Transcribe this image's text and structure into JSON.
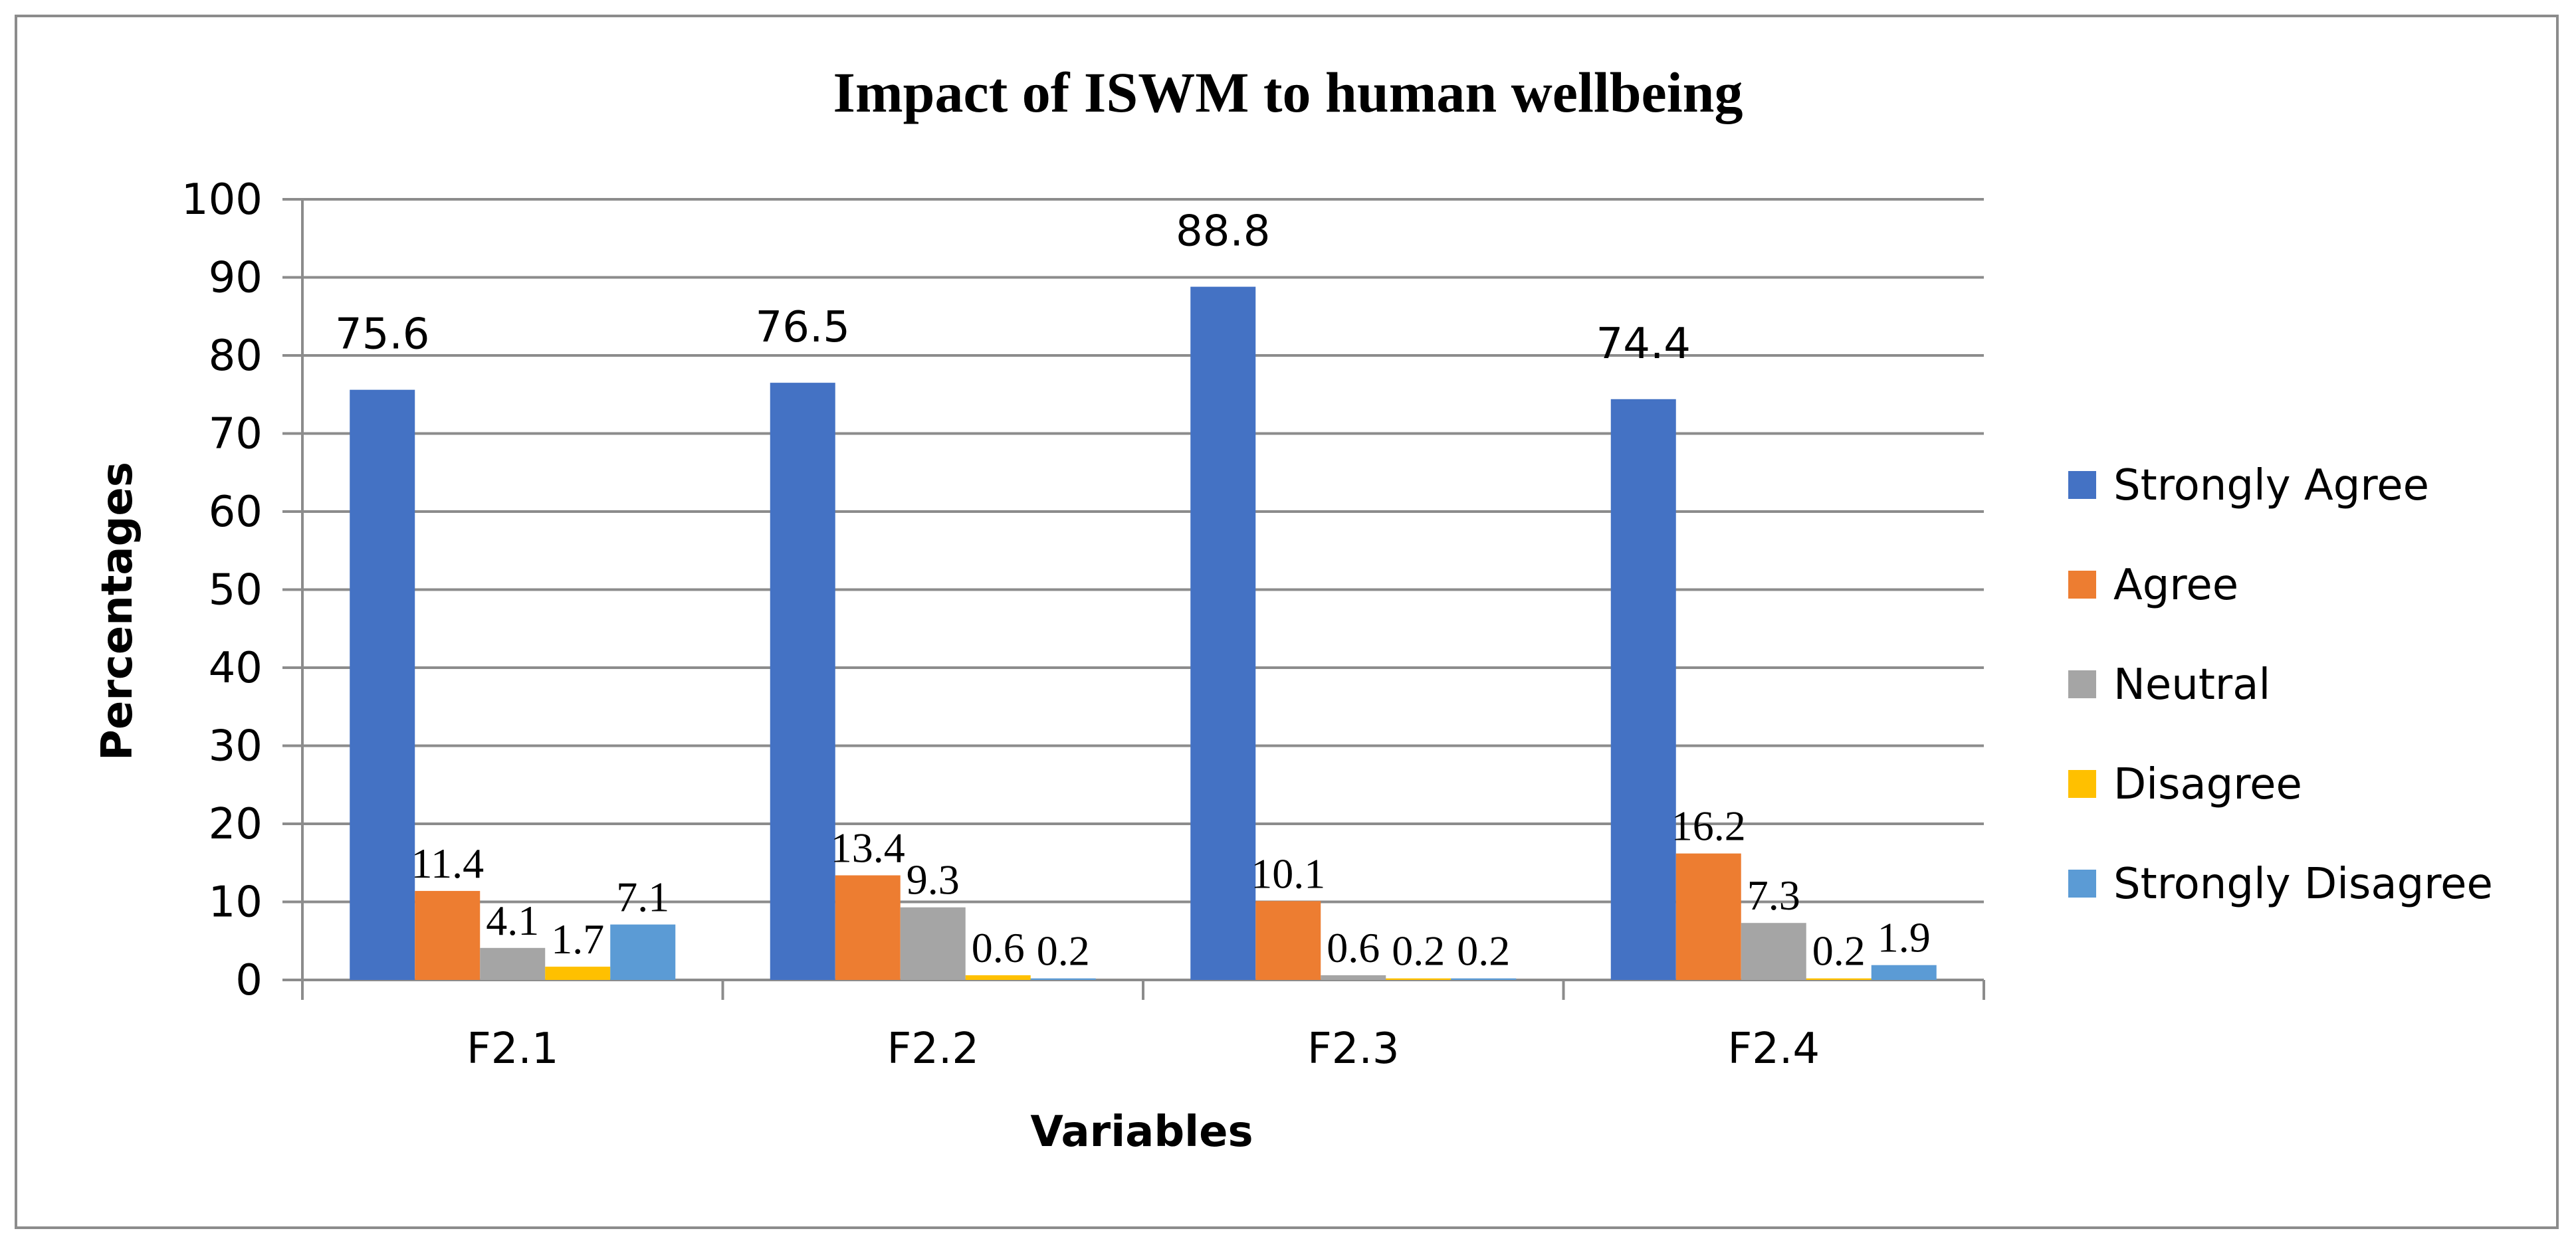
{
  "chart_data": {
    "type": "bar",
    "title": "Impact of ISWM to human  wellbeing",
    "xlabel": "Variables",
    "ylabel": "Percentages",
    "categories": [
      "F2.1",
      "F2.2",
      "F2.3",
      "F2.4"
    ],
    "ylim": [
      0,
      100
    ],
    "yticks": [
      0,
      10,
      20,
      30,
      40,
      50,
      60,
      70,
      80,
      90,
      100
    ],
    "grid": true,
    "legend_position": "right",
    "series": [
      {
        "name": "Strongly Agree",
        "color": "#4472C4",
        "values": [
          75.6,
          76.5,
          88.8,
          74.4
        ],
        "labels": [
          "75.6",
          "76.5",
          "88.8",
          "74.4"
        ]
      },
      {
        "name": "Agree",
        "color": "#ED7D31",
        "values": [
          11.4,
          13.4,
          10.1,
          16.2
        ],
        "labels": [
          "11.4",
          "13.4",
          "10.1",
          "16.2"
        ]
      },
      {
        "name": "Neutral",
        "color": "#A5A5A5",
        "values": [
          4.1,
          9.3,
          0.6,
          7.3
        ],
        "labels": [
          "4.1",
          "9.3",
          "0.6",
          "7.3"
        ]
      },
      {
        "name": "Disagree",
        "color": "#FFC000",
        "values": [
          1.7,
          0.6,
          0.2,
          0.2
        ],
        "labels": [
          "1.7",
          "0.6",
          "0.2",
          "0.2"
        ]
      },
      {
        "name": "Strongly Disagree",
        "color": "#5B9BD5",
        "values": [
          7.1,
          0.2,
          0.2,
          1.9
        ],
        "labels": [
          "7.1",
          "0.2",
          "0.2",
          "1.9"
        ]
      }
    ]
  }
}
